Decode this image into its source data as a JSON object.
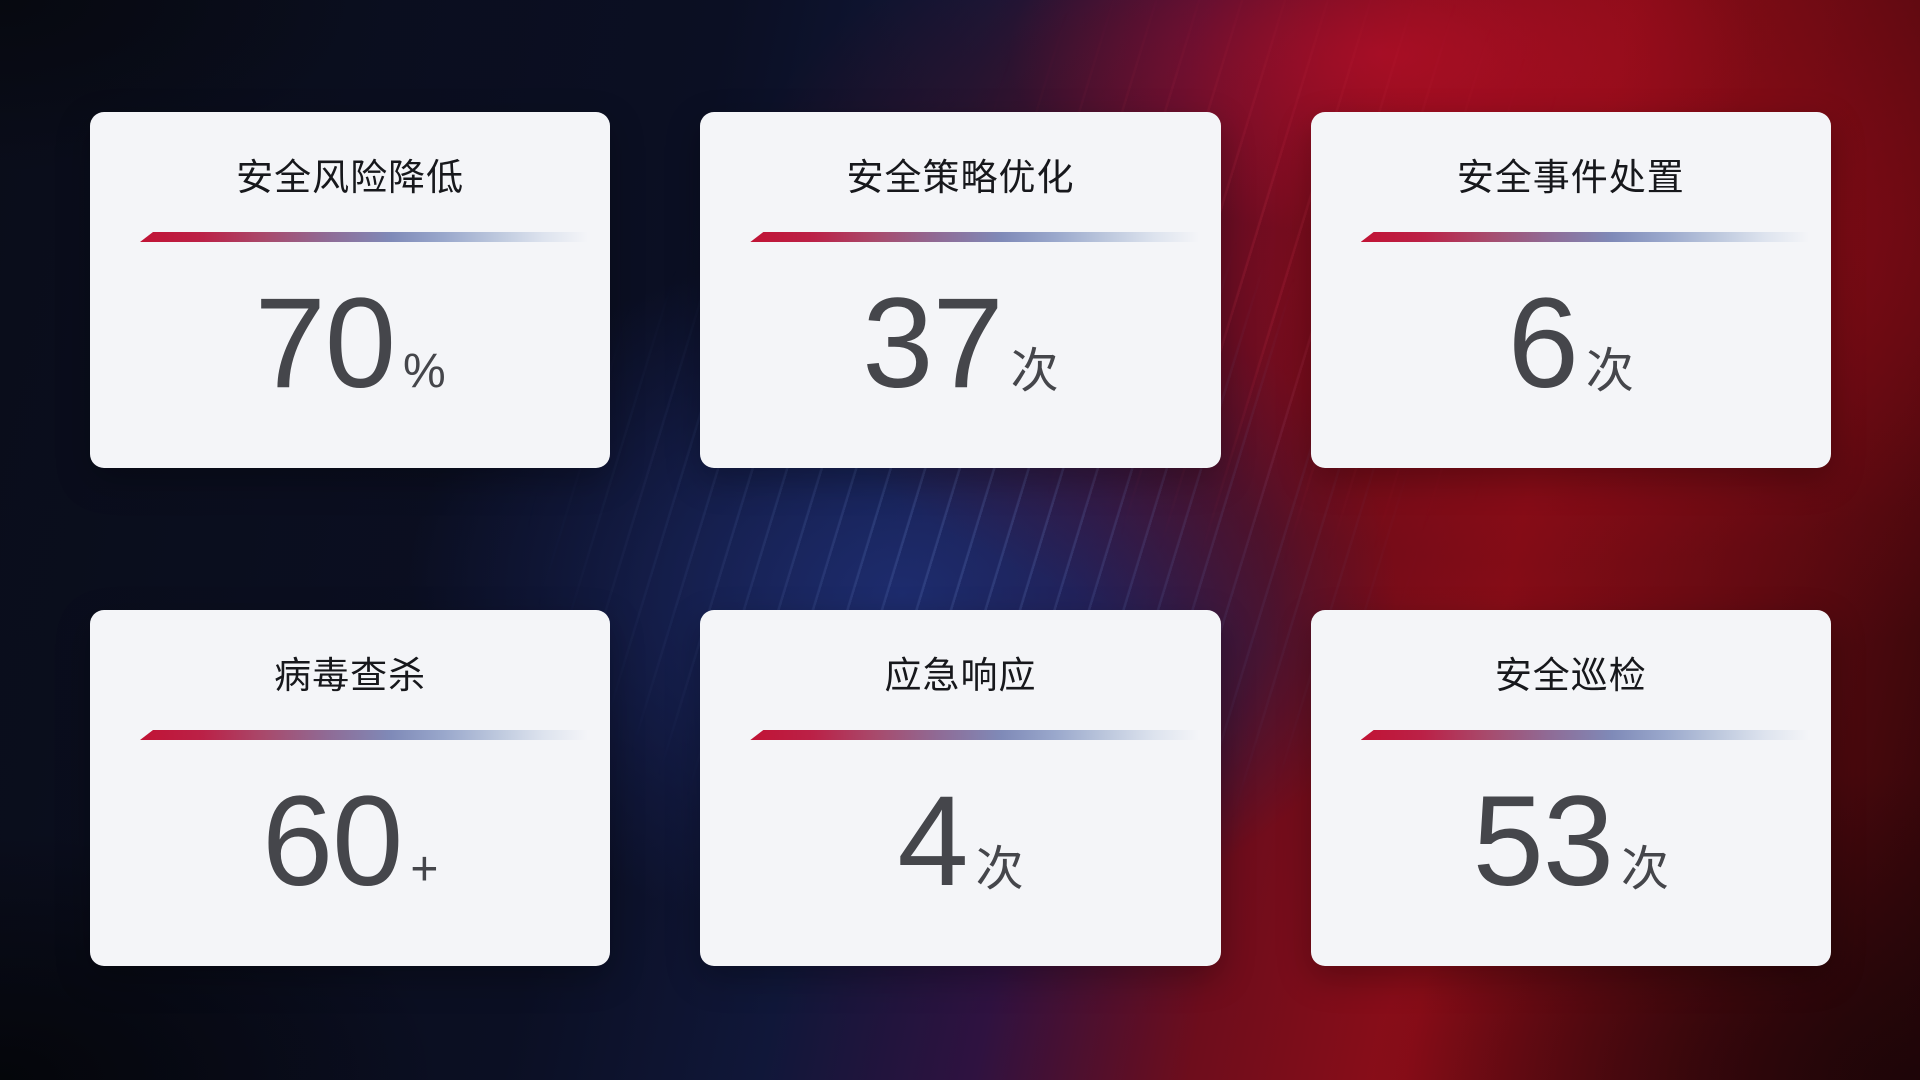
{
  "colors": {
    "card_background": "#f4f5f8",
    "title_text": "#17181c",
    "value_text": "#45464b",
    "accent_line_red": "#c11335",
    "accent_line_blue": "#7f8ab8",
    "background_navy": "#0b0f23",
    "background_blue_band": "#1e2d70",
    "background_red": "#8c0d18"
  },
  "cards": [
    {
      "title": "安全风险降低",
      "value": "70",
      "unit": "%"
    },
    {
      "title": "安全策略优化",
      "value": "37",
      "unit": "次"
    },
    {
      "title": "安全事件处置",
      "value": "6",
      "unit": "次"
    },
    {
      "title": "病毒查杀",
      "value": "60",
      "unit": "+"
    },
    {
      "title": "应急响应",
      "value": "4",
      "unit": "次"
    },
    {
      "title": "安全巡检",
      "value": "53",
      "unit": "次"
    }
  ]
}
